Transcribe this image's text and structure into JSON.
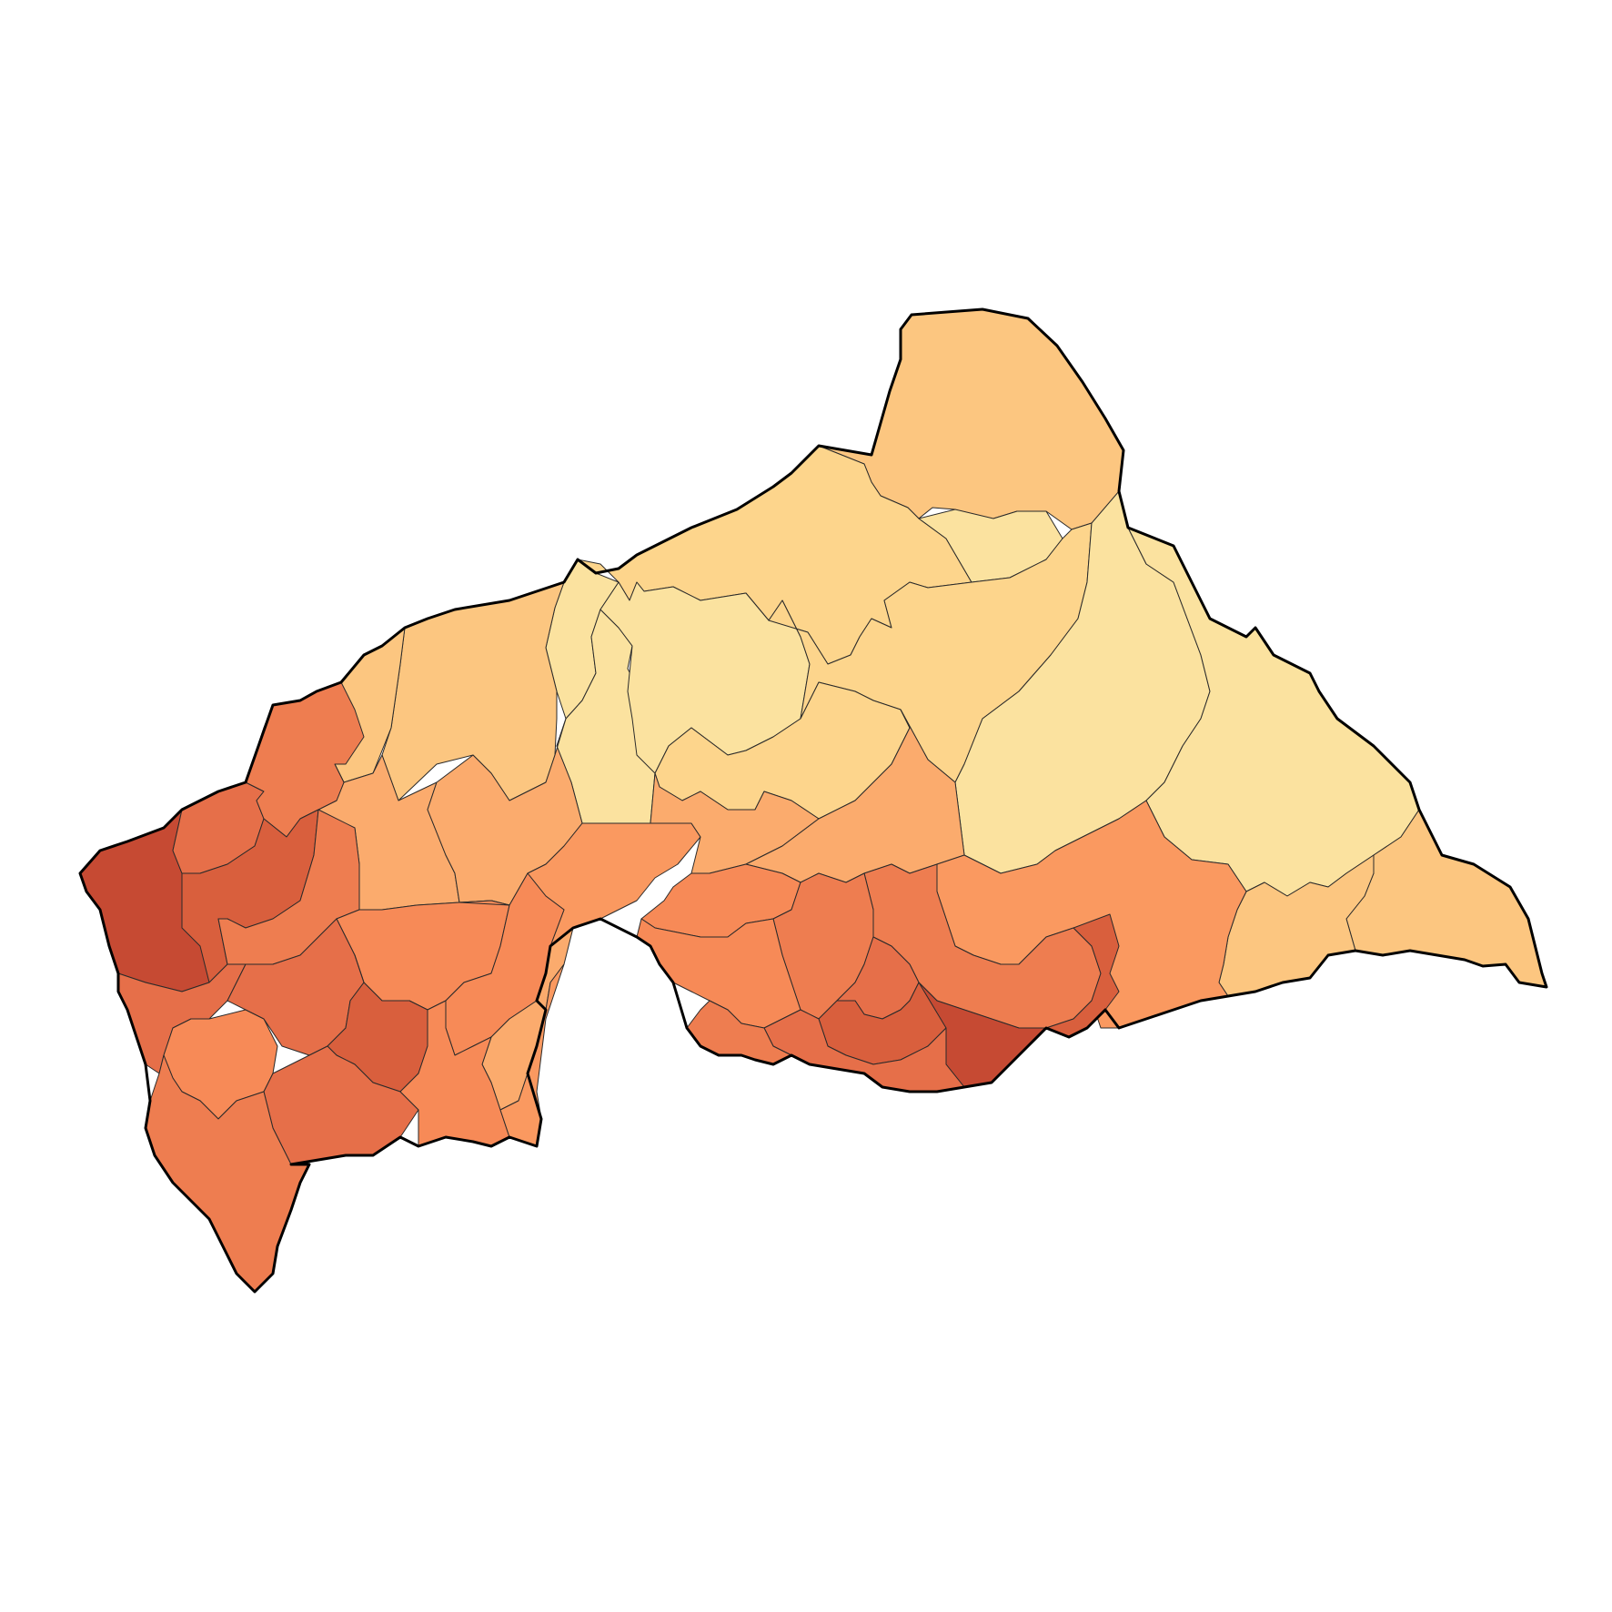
{
  "map": {
    "colors": {
      "level_1": "#fbe29f",
      "level_2": "#fdd58c",
      "level_3": "#fcc680",
      "level_4": "#fbab6d",
      "level_5": "#fa9960",
      "level_6": "#f78a57",
      "level_7": "#ee7d50",
      "level_8": "#e66f49",
      "level_9": "#d95f3d",
      "level_10": "#c64a33",
      "border": "#000000",
      "background": "#ffffff"
    },
    "regions": [
      {
        "name": "region-north-tip",
        "level": 3
      },
      {
        "name": "region-north-central",
        "level": 2
      },
      {
        "name": "region-north-pocket",
        "level": 1
      },
      {
        "name": "region-north-west-strip",
        "level": 1
      },
      {
        "name": "region-west-central-north",
        "level": 1
      },
      {
        "name": "region-central-north-west",
        "level": 1
      },
      {
        "name": "region-central-north",
        "level": 2
      },
      {
        "name": "region-central-corridor",
        "level": 2
      },
      {
        "name": "region-east-central",
        "level": 1
      },
      {
        "name": "region-east",
        "level": 1
      },
      {
        "name": "region-far-east",
        "level": 3
      },
      {
        "name": "region-east-south",
        "level": 3
      },
      {
        "name": "region-west-north-1",
        "level": 3
      },
      {
        "name": "region-west-north-2",
        "level": 3
      },
      {
        "name": "region-west-north-3",
        "level": 4
      },
      {
        "name": "region-west-center-1",
        "level": 4
      },
      {
        "name": "region-west-center-2",
        "level": 5
      },
      {
        "name": "region-center-1",
        "level": 4
      },
      {
        "name": "region-center-2",
        "level": 5
      },
      {
        "name": "region-center-3",
        "level": 4
      },
      {
        "name": "region-center-4",
        "level": 4
      },
      {
        "name": "region-center-east-1",
        "level": 6
      },
      {
        "name": "region-south-east-big",
        "level": 5
      },
      {
        "name": "region-south-east-1",
        "level": 7
      },
      {
        "name": "region-south-east-2",
        "level": 9
      },
      {
        "name": "region-south-center-1",
        "level": 7
      },
      {
        "name": "region-south-center-2",
        "level": 8
      },
      {
        "name": "region-south-center-3",
        "level": 9
      },
      {
        "name": "region-south-center-4",
        "level": 10
      },
      {
        "name": "region-south-center-5",
        "level": 6
      },
      {
        "name": "region-south-center-6",
        "level": 8
      },
      {
        "name": "region-south-center-7",
        "level": 7
      },
      {
        "name": "region-west-far",
        "level": 10
      },
      {
        "name": "region-west-1",
        "level": 8
      },
      {
        "name": "region-west-2",
        "level": 7
      },
      {
        "name": "region-west-3",
        "level": 9
      },
      {
        "name": "region-west-4",
        "level": 7
      },
      {
        "name": "region-west-5",
        "level": 6
      },
      {
        "name": "region-west-6",
        "level": 6
      },
      {
        "name": "region-south-west-1",
        "level": 8
      },
      {
        "name": "region-south-west-2",
        "level": 6
      },
      {
        "name": "region-south-west-3",
        "level": 8
      },
      {
        "name": "region-south-west-4",
        "level": 9
      },
      {
        "name": "region-south-west-5",
        "level": 8
      },
      {
        "name": "region-south-west-6",
        "level": 7
      },
      {
        "name": "region-south-west-7",
        "level": 4
      },
      {
        "name": "region-south-west-8",
        "level": 6
      },
      {
        "name": "region-south-west-9",
        "level": 5
      }
    ]
  }
}
